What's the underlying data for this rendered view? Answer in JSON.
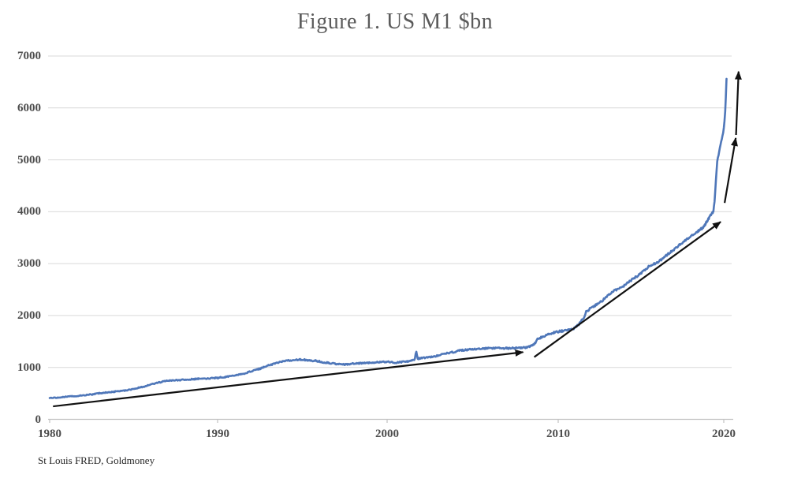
{
  "title": "Figure 1. US M1 $bn",
  "source": "St Louis FRED, Goldmoney",
  "colors": {
    "line": "#4f77b9",
    "arrow": "#111111",
    "grid": "#d9d9d9",
    "axis": "#c2c2c2",
    "tick_text": "#4d4d4d",
    "title_text": "#5b5b5b",
    "background": "#ffffff"
  },
  "chart_data": {
    "type": "line",
    "title": "Figure 1. US M1 $bn",
    "xlabel": "",
    "ylabel": "",
    "x_unit": "year",
    "y_unit": "US$ billions",
    "xlim": [
      1980,
      2021
    ],
    "ylim": [
      0,
      7000
    ],
    "y_ticks": [
      0,
      1000,
      2000,
      3000,
      4000,
      5000,
      6000,
      7000
    ],
    "x_ticks": [
      1980,
      1990,
      2000,
      2010,
      2020
    ],
    "grid": "horizontal",
    "legend": "none",
    "series": [
      {
        "name": "US M1 ($bn)",
        "points": [
          [
            1980.0,
            410
          ],
          [
            1980.5,
            422
          ],
          [
            1981.0,
            437
          ],
          [
            1981.5,
            450
          ],
          [
            1982.0,
            462
          ],
          [
            1982.5,
            480
          ],
          [
            1983.0,
            505
          ],
          [
            1983.5,
            521
          ],
          [
            1984.0,
            538
          ],
          [
            1984.5,
            556
          ],
          [
            1985.0,
            585
          ],
          [
            1985.5,
            622
          ],
          [
            1986.0,
            666
          ],
          [
            1986.5,
            712
          ],
          [
            1987.0,
            745
          ],
          [
            1987.5,
            753
          ],
          [
            1988.0,
            762
          ],
          [
            1988.5,
            775
          ],
          [
            1989.0,
            782
          ],
          [
            1989.5,
            787
          ],
          [
            1990.0,
            800
          ],
          [
            1990.5,
            819
          ],
          [
            1991.0,
            846
          ],
          [
            1991.5,
            876
          ],
          [
            1992.0,
            926
          ],
          [
            1992.5,
            976
          ],
          [
            1993.0,
            1036
          ],
          [
            1993.5,
            1086
          ],
          [
            1994.0,
            1126
          ],
          [
            1994.7,
            1150
          ],
          [
            1995.3,
            1144
          ],
          [
            1995.8,
            1126
          ],
          [
            1996.3,
            1096
          ],
          [
            1996.9,
            1070
          ],
          [
            1997.4,
            1056
          ],
          [
            1998.0,
            1073
          ],
          [
            1998.6,
            1081
          ],
          [
            1999.2,
            1093
          ],
          [
            1999.8,
            1104
          ],
          [
            2000.1,
            1108
          ],
          [
            2000.5,
            1093
          ],
          [
            2001.0,
            1106
          ],
          [
            2001.5,
            1136
          ],
          [
            2001.62,
            1152
          ],
          [
            2001.7,
            1325
          ],
          [
            2001.78,
            1168
          ],
          [
            2002.2,
            1186
          ],
          [
            2002.7,
            1206
          ],
          [
            2003.2,
            1246
          ],
          [
            2003.7,
            1286
          ],
          [
            2004.2,
            1321
          ],
          [
            2004.7,
            1341
          ],
          [
            2005.2,
            1356
          ],
          [
            2005.7,
            1366
          ],
          [
            2006.2,
            1369
          ],
          [
            2006.7,
            1371
          ],
          [
            2007.2,
            1369
          ],
          [
            2007.7,
            1373
          ],
          [
            2008.1,
            1386
          ],
          [
            2008.5,
            1421
          ],
          [
            2008.63,
            1462
          ],
          [
            2008.8,
            1545
          ],
          [
            2009.0,
            1576
          ],
          [
            2009.3,
            1621
          ],
          [
            2009.6,
            1656
          ],
          [
            2009.9,
            1686
          ],
          [
            2010.2,
            1701
          ],
          [
            2010.6,
            1723
          ],
          [
            2010.9,
            1756
          ],
          [
            2011.2,
            1841
          ],
          [
            2011.45,
            1961
          ],
          [
            2011.6,
            2081
          ],
          [
            2011.9,
            2151
          ],
          [
            2012.2,
            2216
          ],
          [
            2012.5,
            2281
          ],
          [
            2012.8,
            2391
          ],
          [
            2013.1,
            2466
          ],
          [
            2013.4,
            2511
          ],
          [
            2013.7,
            2566
          ],
          [
            2014.0,
            2651
          ],
          [
            2014.3,
            2721
          ],
          [
            2014.6,
            2791
          ],
          [
            2014.9,
            2881
          ],
          [
            2015.2,
            2961
          ],
          [
            2015.5,
            3006
          ],
          [
            2015.8,
            3056
          ],
          [
            2016.1,
            3131
          ],
          [
            2016.4,
            3216
          ],
          [
            2016.7,
            3281
          ],
          [
            2017.0,
            3371
          ],
          [
            2017.3,
            3451
          ],
          [
            2017.6,
            3521
          ],
          [
            2017.9,
            3591
          ],
          [
            2018.2,
            3636
          ],
          [
            2018.5,
            3666
          ],
          [
            2018.8,
            3696
          ],
          [
            2019.1,
            3771
          ],
          [
            2019.4,
            3851
          ],
          [
            2019.7,
            3921
          ],
          [
            2019.95,
            3976
          ],
          [
            2020.08,
            3996
          ],
          [
            2020.17,
            4201
          ],
          [
            2020.25,
            4601
          ],
          [
            2020.33,
            4961
          ],
          [
            2020.42,
            5101
          ],
          [
            2020.5,
            5221
          ],
          [
            2020.58,
            5341
          ],
          [
            2020.66,
            5461
          ],
          [
            2020.73,
            5551
          ],
          [
            2020.8,
            5781
          ],
          [
            2020.85,
            6001
          ],
          [
            2020.92,
            6560
          ]
        ]
      }
    ],
    "annotations": {
      "trend_arrows": [
        {
          "from": [
            1980.2,
            250
          ],
          "to": [
            2007.95,
            1295
          ]
        },
        {
          "from": [
            2008.6,
            1200
          ],
          "to": [
            2020.55,
            3805
          ]
        },
        {
          "from": [
            2020.8,
            4170
          ],
          "to": [
            2021.5,
            5420
          ]
        },
        {
          "from": [
            2021.52,
            5480
          ],
          "to": [
            2021.68,
            6700
          ]
        }
      ]
    }
  }
}
